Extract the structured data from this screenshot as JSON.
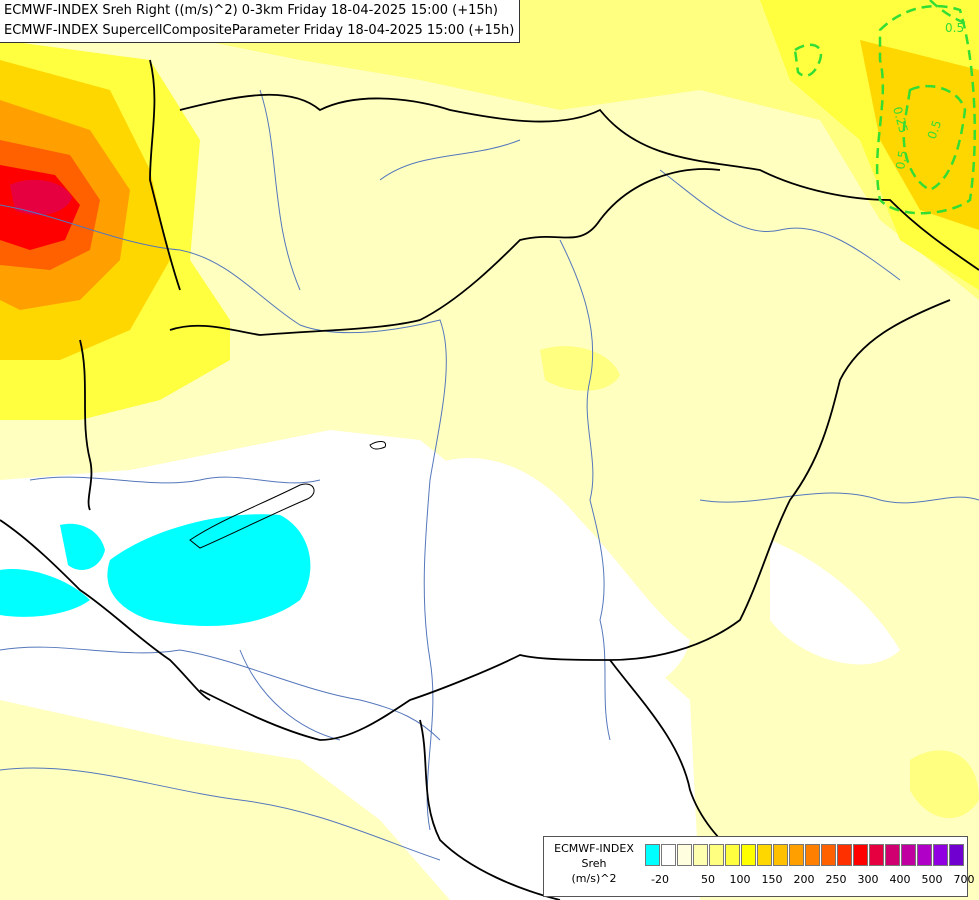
{
  "header": {
    "line1": "ECMWF-INDEX Sreh Right ((m/s)^2) 0-3km Friday 18-04-2025 15:00 (+15h)",
    "line2": "ECMWF-INDEX SupercellCompositeParameter Friday 18-04-2025 15:00 (+15h)"
  },
  "legend": {
    "title_line1": "ECMWF-INDEX",
    "title_line2": "Sreh",
    "title_line3": "(m/s)^2",
    "colors": [
      "#00ffff",
      "#ffffff",
      "#ffffe0",
      "#ffffb0",
      "#ffff80",
      "#ffff40",
      "#ffff00",
      "#ffd700",
      "#ffc000",
      "#ffa000",
      "#ff8000",
      "#ff6000",
      "#ff3000",
      "#ff0000",
      "#e60040",
      "#d00070",
      "#c000a0",
      "#b000c8",
      "#9000e0",
      "#7000d0",
      "#4000b0",
      "#200090",
      "#000080"
    ],
    "ticks": [
      {
        "label": "-20",
        "index": 0
      },
      {
        "label": "50",
        "index": 3
      },
      {
        "label": "100",
        "index": 5
      },
      {
        "label": "150",
        "index": 7
      },
      {
        "label": "200",
        "index": 9
      },
      {
        "label": "250",
        "index": 11
      },
      {
        "label": "300",
        "index": 13
      },
      {
        "label": "400",
        "index": 15
      },
      {
        "label": "500",
        "index": 17
      },
      {
        "label": "700",
        "index": 19
      }
    ]
  },
  "contours": {
    "color": "#33dd33",
    "labels": [
      "0.5",
      "0.25",
      "0.5",
      "0.5"
    ]
  },
  "colors": {
    "border": "#000000",
    "river": "#5577bb",
    "helicity_cyan": "#00ffff"
  }
}
